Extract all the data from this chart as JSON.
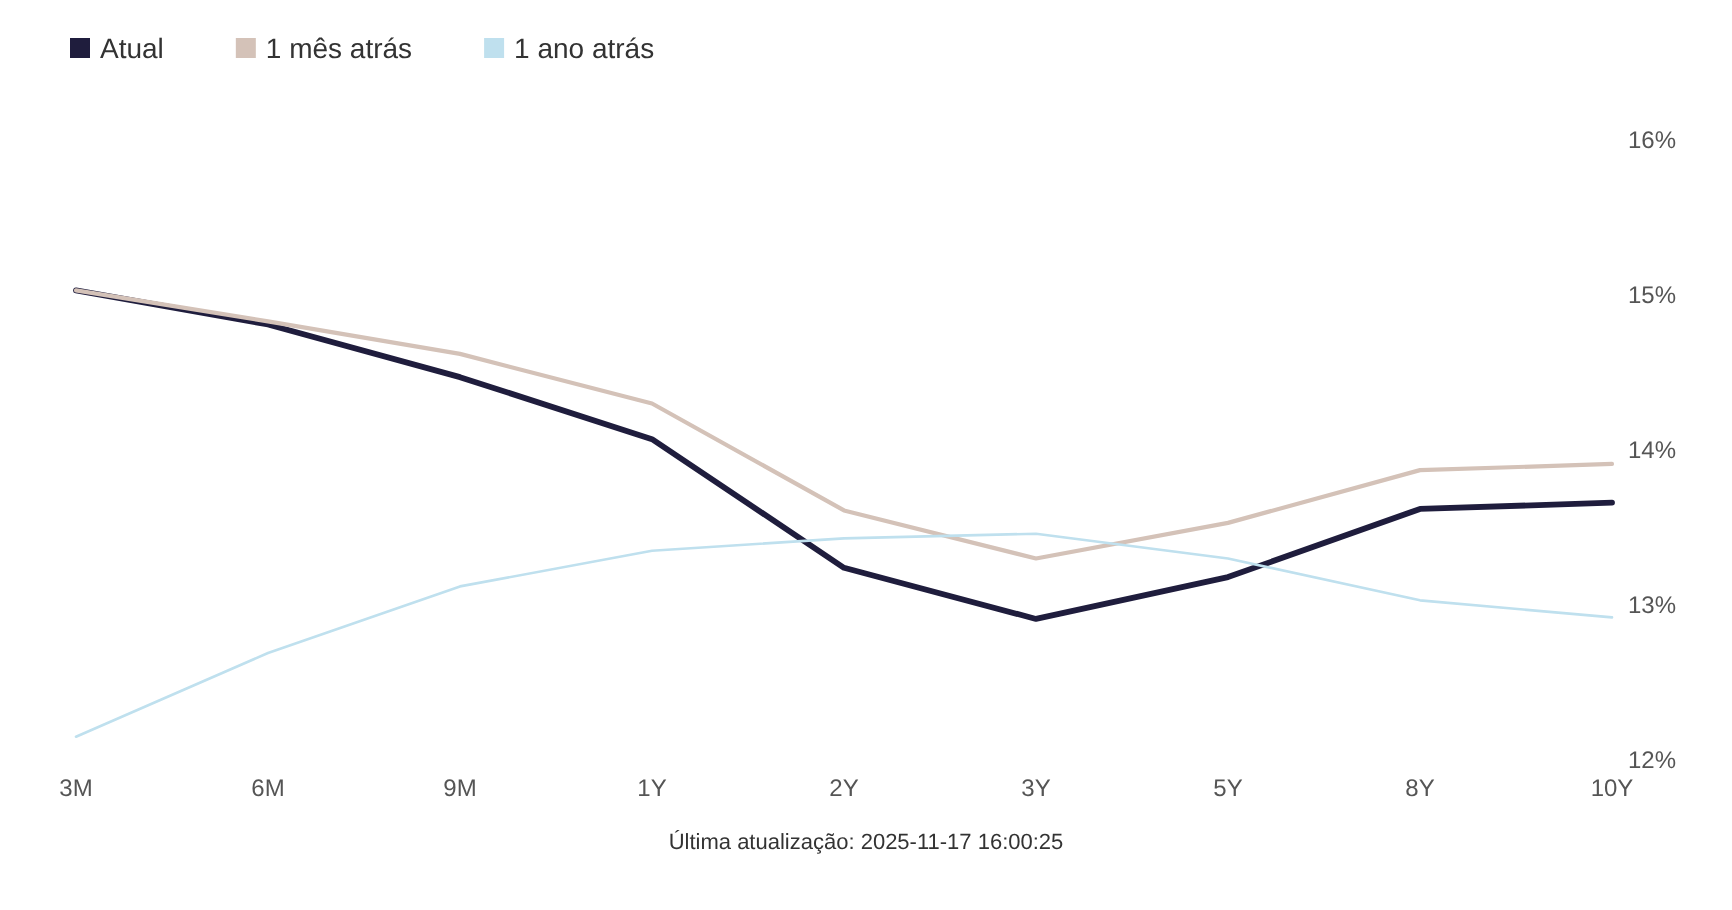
{
  "chart_data": {
    "type": "line",
    "categories": [
      "3M",
      "6M",
      "9M",
      "1Y",
      "2Y",
      "3Y",
      "5Y",
      "8Y",
      "10Y"
    ],
    "series": [
      {
        "name": "Atual",
        "color": "#1f1d3d",
        "values": [
          15.03,
          14.81,
          14.47,
          14.07,
          13.24,
          12.91,
          13.18,
          13.62,
          13.66
        ]
      },
      {
        "name": "1 mês atrás",
        "color": "#d4c2b8",
        "values": [
          15.03,
          14.83,
          14.62,
          14.3,
          13.61,
          13.3,
          13.53,
          13.87,
          13.91
        ]
      },
      {
        "name": "1 ano atrás",
        "color": "#bfe0ee",
        "values": [
          12.15,
          12.69,
          13.12,
          13.35,
          13.43,
          13.46,
          13.3,
          13.03,
          12.92
        ]
      }
    ],
    "ylim": [
      12,
      16
    ],
    "yticks": [
      {
        "value": 12,
        "label": "12%"
      },
      {
        "value": 13,
        "label": "13%"
      },
      {
        "value": 14,
        "label": "14%"
      },
      {
        "value": 15,
        "label": "15%"
      },
      {
        "value": 16,
        "label": "16%"
      }
    ],
    "legend": "top left",
    "marker": "none",
    "line_style": "solid",
    "grid": false,
    "annotations": [
      "Última atualização: 2025-11-17 16:00:25"
    ]
  }
}
